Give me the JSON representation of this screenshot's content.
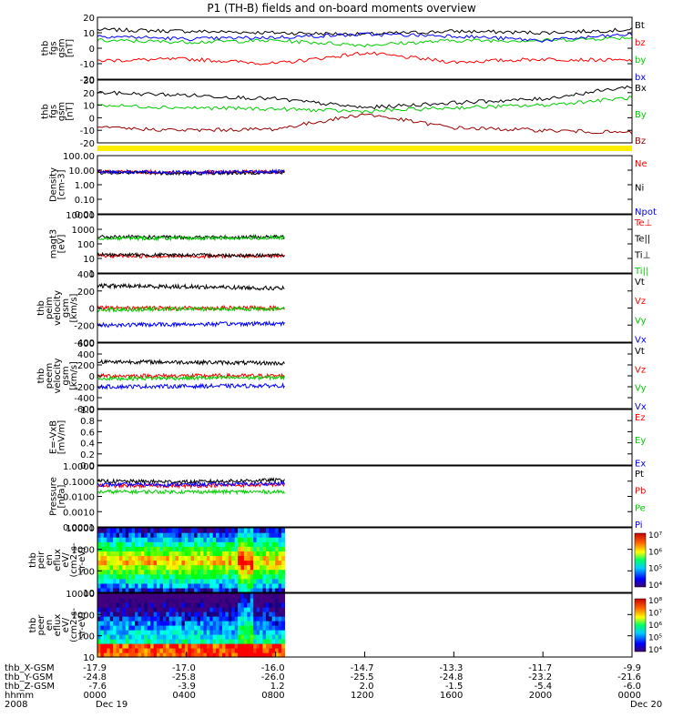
{
  "title": "P1 (TH-B) fields and on-board moments overview",
  "panels": [
    {
      "id": "fgs_gsm",
      "ylabel": [
        "thb",
        "fgs",
        "gsm",
        "[nT]"
      ],
      "yticks": [
        "20",
        "10",
        "0",
        "-10",
        "-20"
      ],
      "legend": [
        {
          "text": "Bt",
          "color": "#000000"
        },
        {
          "text": "bz",
          "color": "#ff0000"
        },
        {
          "text": "by",
          "color": "#00cc00"
        },
        {
          "text": "bx",
          "color": "#0000ff"
        }
      ]
    },
    {
      "id": "fgs_gse",
      "ylabel": [
        "thb",
        "fgs",
        "gsm",
        "[nT]"
      ],
      "yticks": [
        "30",
        "20",
        "10",
        "0",
        "-10",
        "-20"
      ],
      "legend": [
        {
          "text": "Bx",
          "color": "#000000"
        },
        {
          "text": "By",
          "color": "#00cc00"
        },
        {
          "text": "Bz",
          "color": "#990000"
        }
      ]
    },
    {
      "id": "density",
      "ylabel": [
        "Density",
        "[cm-3]"
      ],
      "yticks": [
        "100.00",
        "10.00",
        "1.00",
        "0.10",
        "0.01"
      ],
      "legend": [
        {
          "text": "Ne",
          "color": "#ff0000"
        },
        {
          "text": "Ni",
          "color": "#000000"
        },
        {
          "text": "Npot",
          "color": "#0000ff"
        }
      ]
    },
    {
      "id": "temperature",
      "ylabel": [
        "magt3",
        "[eV]"
      ],
      "yticks": [
        "10000",
        "1000",
        "100",
        "10",
        "1"
      ],
      "legend": [
        {
          "text": "Te⊥",
          "color": "#ff0000"
        },
        {
          "text": "Te||",
          "color": "#000000"
        },
        {
          "text": "Ti⊥",
          "color": "#000000"
        },
        {
          "text": "Ti||",
          "color": "#00cc00"
        }
      ]
    },
    {
      "id": "peim_velocity",
      "ylabel": [
        "thb",
        "peim",
        "velocity",
        "gsm",
        "[km/s]"
      ],
      "yticks": [
        "400",
        "200",
        "0",
        "-200",
        "-400"
      ],
      "legend": [
        {
          "text": "Vt",
          "color": "#000000"
        },
        {
          "text": "Vz",
          "color": "#ff0000"
        },
        {
          "text": "Vy",
          "color": "#00cc00"
        },
        {
          "text": "Vx",
          "color": "#0000ff"
        }
      ]
    },
    {
      "id": "peem_velocity",
      "ylabel": [
        "thb",
        "peem",
        "velocity",
        "gsm",
        "[km/s]"
      ],
      "yticks": [
        "600",
        "400",
        "200",
        "0",
        "-200",
        "-400",
        "-600"
      ],
      "legend": [
        {
          "text": "Vt",
          "color": "#000000"
        },
        {
          "text": "Vz",
          "color": "#ff0000"
        },
        {
          "text": "Vy",
          "color": "#00cc00"
        },
        {
          "text": "Vx",
          "color": "#0000ff"
        }
      ]
    },
    {
      "id": "efield",
      "ylabel": [
        "E=-VxB",
        "[mV/m]"
      ],
      "yticks": [
        "1.0",
        "0.8",
        "0.6",
        "0.4",
        "0.2",
        "0.0"
      ],
      "legend": [
        {
          "text": "Ez",
          "color": "#ff0000"
        },
        {
          "text": "Ey",
          "color": "#00cc00"
        },
        {
          "text": "Ex",
          "color": "#0000ff"
        }
      ]
    },
    {
      "id": "pressure",
      "ylabel": [
        "Pressure",
        "[nPa]"
      ],
      "yticks": [
        "1.0000",
        "0.1000",
        "0.0100",
        "0.0010",
        "0.0001"
      ],
      "legend": [
        {
          "text": "Pt",
          "color": "#000000"
        },
        {
          "text": "Pb",
          "color": "#ff0000"
        },
        {
          "text": "Pe",
          "color": "#00cc00"
        },
        {
          "text": "Pi",
          "color": "#0000ff"
        }
      ]
    },
    {
      "id": "peir_spec",
      "ylabel": [
        "thb",
        "peir",
        "en",
        "eflux",
        "eV/",
        "(cm2-s-",
        "sr-eV)"
      ],
      "yticks": [
        "10000",
        "1000",
        "100",
        "10"
      ],
      "colorbar": [
        "10⁷",
        "10⁶",
        "10⁵",
        "10⁴"
      ]
    },
    {
      "id": "peer_spec",
      "ylabel": [
        "thb",
        "peer",
        "en",
        "eflux",
        "eV/",
        "(cm2-s-",
        "sr-eV)"
      ],
      "yticks": [
        "10000",
        "1000",
        "100",
        "10"
      ],
      "colorbar": [
        "10⁸",
        "10⁷",
        "10⁶",
        "10⁵",
        "10⁴"
      ]
    }
  ],
  "xaxis": {
    "row_labels": [
      "thb_X-GSM",
      "thb_Y-GSM",
      "thb_Z-GSM",
      "hhmm",
      "2008"
    ],
    "columns": [
      {
        "lines": [
          "-17.9",
          "-24.8",
          "-7.6",
          "0000",
          "Dec 19"
        ]
      },
      {
        "lines": [
          "-17.0",
          "-25.8",
          "-3.9",
          "0400",
          ""
        ]
      },
      {
        "lines": [
          "-16.0",
          "-26.0",
          "1.2",
          "0800",
          ""
        ]
      },
      {
        "lines": [
          "-14.7",
          "-25.5",
          "2.0",
          "1200",
          ""
        ]
      },
      {
        "lines": [
          "-13.3",
          "-24.8",
          "-1.5",
          "1600",
          ""
        ]
      },
      {
        "lines": [
          "-11.7",
          "-23.2",
          "-5.4",
          "2000",
          ""
        ]
      },
      {
        "lines": [
          "-9.9",
          "-21.6",
          "-6.0",
          "0000",
          "Dec 20"
        ]
      }
    ]
  },
  "chart_data": [
    {
      "type": "line",
      "title": "P1 (TH-B) fields and on-board moments overview",
      "ylabel": "thb fgs gsm [nT]",
      "ylim": [
        -20,
        20
      ],
      "x": [
        "0000",
        "0400",
        "0800",
        "1200",
        "1600",
        "2000",
        "0000"
      ],
      "series": [
        {
          "name": "Bt",
          "values": [
            12,
            11,
            10,
            9,
            11,
            10,
            12
          ]
        },
        {
          "name": "bz",
          "values": [
            -8,
            -7,
            -10,
            -3,
            -9,
            -7,
            -8
          ]
        },
        {
          "name": "by",
          "values": [
            5,
            4,
            5,
            2,
            5,
            5,
            7
          ]
        },
        {
          "name": "bx",
          "values": [
            8,
            6,
            7,
            9,
            8,
            5,
            9
          ]
        }
      ]
    },
    {
      "type": "line",
      "ylabel": "thb fgs gsm [nT]",
      "ylim": [
        -20,
        30
      ],
      "x": [
        "0000",
        "0400",
        "0800",
        "1200",
        "1600",
        "2000",
        "0000"
      ],
      "series": [
        {
          "name": "Bx",
          "values": [
            20,
            18,
            15,
            8,
            12,
            15,
            25
          ]
        },
        {
          "name": "By",
          "values": [
            10,
            8,
            7,
            5,
            8,
            10,
            16
          ]
        },
        {
          "name": "Bz",
          "values": [
            -8,
            -10,
            -9,
            3,
            -8,
            -10,
            -12
          ]
        }
      ]
    },
    {
      "type": "line",
      "ylabel": "Density [cm-3]",
      "ylim": [
        0.01,
        100
      ],
      "scale": "log",
      "x": [
        "0000",
        "0400",
        "0800"
      ],
      "series": [
        {
          "name": "Ne",
          "values": [
            8,
            7,
            8
          ]
        },
        {
          "name": "Ni",
          "values": [
            7,
            6,
            7
          ]
        },
        {
          "name": "Npot",
          "values": [
            8,
            7,
            8
          ]
        }
      ]
    },
    {
      "type": "line",
      "ylabel": "magt3 [eV]",
      "ylim": [
        1,
        10000
      ],
      "scale": "log",
      "x": [
        "0000",
        "0400",
        "0800"
      ],
      "series": [
        {
          "name": "Te⊥",
          "values": [
            15,
            14,
            15
          ]
        },
        {
          "name": "Te||",
          "values": [
            18,
            17,
            16
          ]
        },
        {
          "name": "Ti⊥",
          "values": [
            300,
            280,
            300
          ]
        },
        {
          "name": "Ti||",
          "values": [
            250,
            240,
            260
          ]
        }
      ]
    },
    {
      "type": "line",
      "ylabel": "thb peim velocity gsm [km/s]",
      "ylim": [
        -400,
        400
      ],
      "x": [
        "0000",
        "0400",
        "0800"
      ],
      "series": [
        {
          "name": "Vt",
          "values": [
            260,
            250,
            230
          ]
        },
        {
          "name": "Vz",
          "values": [
            0,
            0,
            0
          ]
        },
        {
          "name": "Vy",
          "values": [
            -20,
            -10,
            -10
          ]
        },
        {
          "name": "Vx",
          "values": [
            -200,
            -190,
            -180
          ]
        }
      ]
    },
    {
      "type": "line",
      "ylabel": "thb peem velocity gsm [km/s]",
      "ylim": [
        -600,
        600
      ],
      "x": [
        "0000",
        "0400",
        "0800"
      ],
      "series": [
        {
          "name": "Vt",
          "values": [
            260,
            250,
            230
          ]
        },
        {
          "name": "Vz",
          "values": [
            0,
            0,
            0
          ]
        },
        {
          "name": "Vy",
          "values": [
            -50,
            -40,
            -30
          ]
        },
        {
          "name": "Vx",
          "values": [
            -200,
            -190,
            -180
          ]
        }
      ]
    },
    {
      "type": "line",
      "ylabel": "E=-VxB [mV/m]",
      "ylim": [
        0,
        1
      ],
      "series": [
        {
          "name": "Ez",
          "values": []
        },
        {
          "name": "Ey",
          "values": []
        },
        {
          "name": "Ex",
          "values": []
        }
      ]
    },
    {
      "type": "line",
      "ylabel": "Pressure [nPa]",
      "ylim": [
        0.0001,
        1
      ],
      "scale": "log",
      "x": [
        "0000",
        "0400",
        "0800"
      ],
      "series": [
        {
          "name": "Pt",
          "values": [
            0.1,
            0.09,
            0.12
          ]
        },
        {
          "name": "Pb",
          "values": [
            0.05,
            0.05,
            0.06
          ]
        },
        {
          "name": "Pe",
          "values": [
            0.02,
            0.02,
            0.02
          ]
        },
        {
          "name": "Pi",
          "values": [
            0.06,
            0.06,
            0.07
          ]
        }
      ]
    },
    {
      "type": "heatmap",
      "ylabel": "thb peir en eflux eV/(cm2-s-sr-eV)",
      "ylim": [
        10,
        10000
      ],
      "scale": "log",
      "colorbar_range": [
        10000,
        10000000
      ]
    },
    {
      "type": "heatmap",
      "ylabel": "thb peer en eflux eV/(cm2-s-sr-eV)",
      "ylim": [
        10,
        10000
      ],
      "scale": "log",
      "colorbar_range": [
        10000,
        100000000
      ]
    }
  ]
}
